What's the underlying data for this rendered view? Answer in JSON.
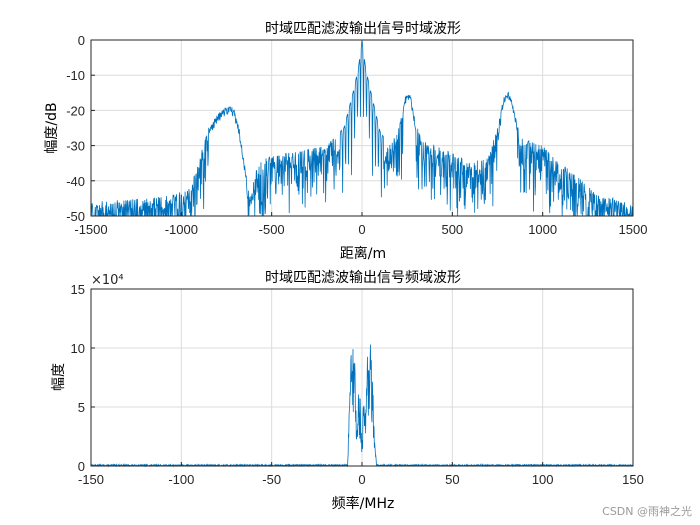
{
  "chart_data": [
    {
      "type": "line",
      "title": "时域匹配滤波输出信号时域波形",
      "xlabel": "距离/m",
      "ylabel": "幅度/dB",
      "xlim": [
        -1500,
        1500
      ],
      "ylim": [
        -50,
        0
      ],
      "xticks": [
        -1500,
        -1000,
        -500,
        0,
        500,
        1000,
        1500
      ],
      "yticks": [
        0,
        -10,
        -20,
        -30,
        -40,
        -50
      ],
      "grid": true,
      "color": "#0072BD",
      "envelope_points": {
        "x": [
          -1500,
          -1200,
          -1050,
          -950,
          -900,
          -880,
          -850,
          -800,
          -750,
          -710,
          -680,
          -650,
          -620,
          -600,
          -550,
          -500,
          -400,
          -300,
          -200,
          -100,
          -50,
          -20,
          0,
          20,
          50,
          100,
          150,
          200,
          230,
          250,
          270,
          300,
          330,
          350,
          400,
          500,
          600,
          700,
          750,
          780,
          800,
          820,
          850,
          880,
          900,
          950,
          1000,
          1100,
          1200,
          1300,
          1400,
          1500
        ],
        "y": [
          -46,
          -45,
          -44,
          -42,
          -34,
          -30,
          -25,
          -21,
          -19,
          -19,
          -25,
          -35,
          -45,
          -38,
          -34,
          -33,
          -32,
          -31,
          -30,
          -25,
          -15,
          -8,
          0,
          -8,
          -15,
          -26,
          -30,
          -26,
          -18,
          -14,
          -16,
          -24,
          -28,
          -29,
          -30,
          -32,
          -35,
          -33,
          -25,
          -17,
          -14,
          -15,
          -22,
          -28,
          -27,
          -29,
          -30,
          -35,
          -39,
          -44,
          -45,
          -47
        ]
      }
    },
    {
      "type": "line",
      "title": "时域匹配滤波输出信号频域波形",
      "xlabel": "频率/MHz",
      "ylabel": "幅度",
      "xlim": [
        -150,
        150
      ],
      "ylim": [
        0,
        15
      ],
      "exponent_label": "×10⁴",
      "xticks": [
        -150,
        -100,
        -50,
        0,
        50,
        100,
        150
      ],
      "yticks": [
        0,
        5,
        10,
        15
      ],
      "grid": true,
      "color": "#0072BD",
      "envelope_points": {
        "x": [
          -150,
          -10,
          -8,
          -7,
          -6,
          -5,
          -4,
          -3,
          -2,
          -1,
          0,
          1,
          2,
          3,
          4,
          5,
          6,
          7,
          8,
          10,
          150
        ],
        "y": [
          0,
          0.2,
          0.5,
          5,
          12,
          13.2,
          9,
          4,
          7,
          6,
          2,
          7,
          4,
          10,
          9.5,
          11,
          7,
          2,
          0.5,
          0.1,
          0
        ]
      }
    }
  ],
  "watermark": "CSDN @雨神之光"
}
